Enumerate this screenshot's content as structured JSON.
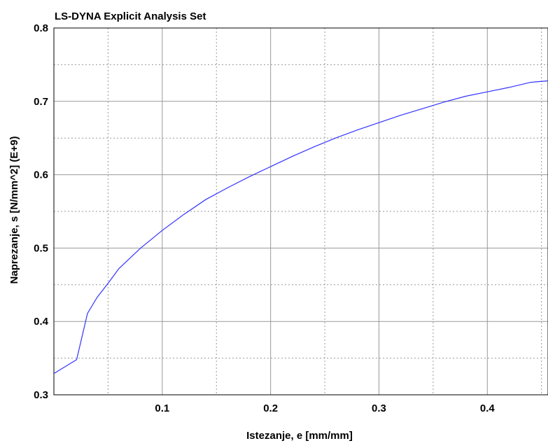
{
  "chart_data": {
    "type": "line",
    "title": "LS-DYNA Explicit Analysis Set",
    "xlabel": "Istezanje, e [mm/mm]",
    "ylabel": "Naprezanje, s [N/mm^2] (E+9)",
    "xlim": [
      0.0,
      0.456
    ],
    "ylim": [
      0.3,
      0.8
    ],
    "x_ticks": [
      0.1,
      0.2,
      0.3,
      0.4
    ],
    "x_tick_labels": [
      "0.1",
      "0.2",
      "0.3",
      "0.4"
    ],
    "x_minor_grid": [
      0.05,
      0.15,
      0.25,
      0.35,
      0.45
    ],
    "y_ticks": [
      0.3,
      0.4,
      0.5,
      0.6,
      0.7,
      0.8
    ],
    "y_tick_labels": [
      "0.3",
      "0.4",
      "0.5",
      "0.6",
      "0.7",
      "0.8"
    ],
    "y_minor_grid": [
      0.35,
      0.45,
      0.55,
      0.65,
      0.75
    ],
    "grid": true,
    "line_color": "#3333ff",
    "series": [
      {
        "x": [
          0.0,
          0.021,
          0.031,
          0.04,
          0.05,
          0.06,
          0.08,
          0.1,
          0.12,
          0.14,
          0.16,
          0.18,
          0.2,
          0.22,
          0.24,
          0.26,
          0.28,
          0.3,
          0.32,
          0.34,
          0.36,
          0.38,
          0.4,
          0.42,
          0.44,
          0.456
        ],
        "y": [
          0.329,
          0.348,
          0.411,
          0.433,
          0.452,
          0.472,
          0.5,
          0.524,
          0.546,
          0.566,
          0.582,
          0.597,
          0.611,
          0.625,
          0.638,
          0.65,
          0.661,
          0.671,
          0.681,
          0.69,
          0.699,
          0.707,
          0.713,
          0.719,
          0.726,
          0.728
        ]
      }
    ]
  }
}
